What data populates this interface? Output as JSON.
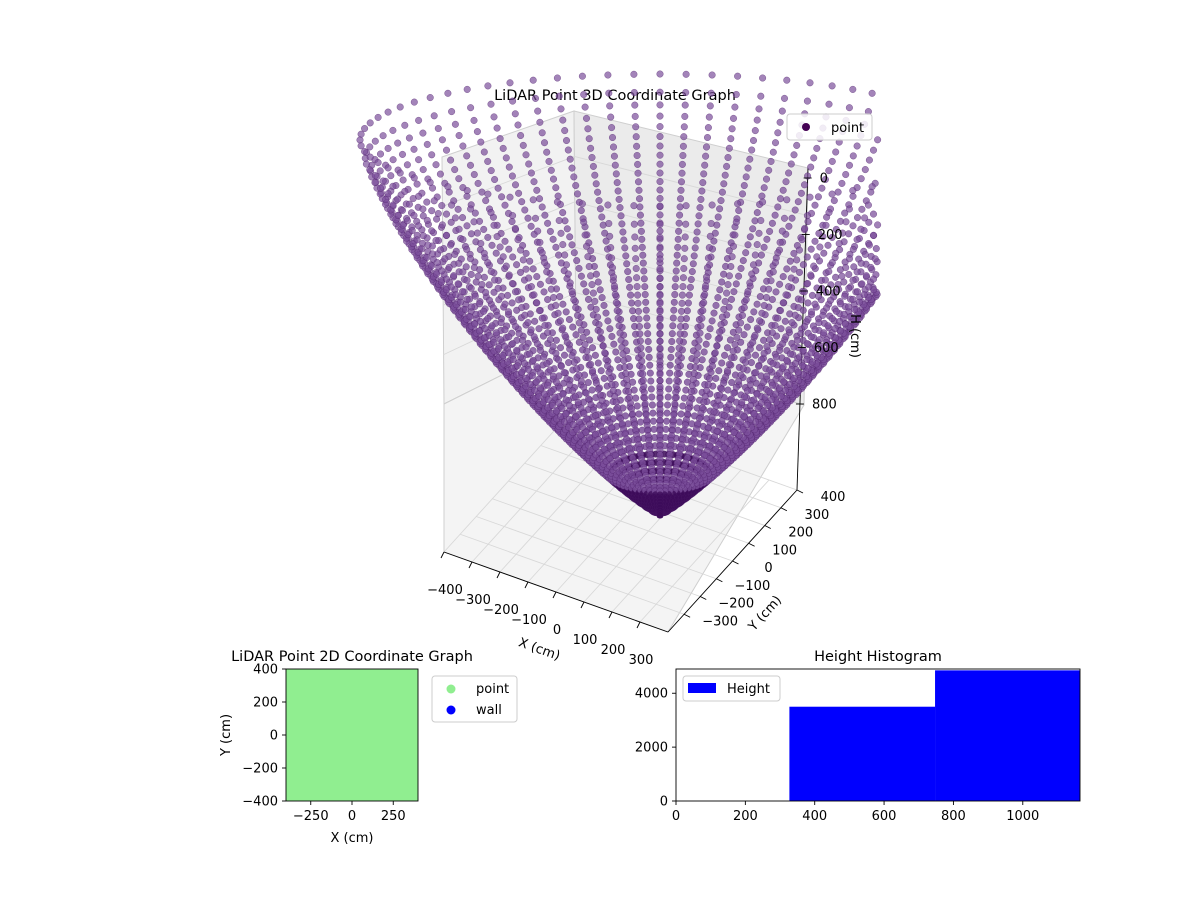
{
  "chart_data": [
    {
      "type": "scatter3d",
      "title": "LiDAR Point 3D Coordinate Graph",
      "xlabel": "X (cm)",
      "ylabel": "Y (cm)",
      "zlabel": "H (cm)",
      "xticks": [
        "−400",
        "−300",
        "−200",
        "−100",
        "0",
        "100",
        "200",
        "300"
      ],
      "yticks": [
        "−300",
        "−200",
        "−100",
        "0",
        "100",
        "200",
        "300",
        "400"
      ],
      "zticks": [
        "0",
        "200",
        "400",
        "600",
        "800"
      ],
      "xlim": [
        -400,
        400
      ],
      "ylim": [
        -400,
        400
      ],
      "zlim": [
        0,
        1000
      ],
      "grid": true,
      "legend": {
        "position": "top-right",
        "entries": [
          {
            "label": "point",
            "color": "#440154"
          }
        ]
      },
      "series": [
        {
          "name": "point",
          "color": "#440154",
          "shape": "bowl",
          "rings": 52,
          "rays": 72,
          "r_max": 700,
          "h_max": 1000
        }
      ]
    },
    {
      "type": "scatter",
      "title": "LiDAR Point 2D Coordinate Graph",
      "xlabel": "X (cm)",
      "ylabel": "Y (cm)",
      "xticks": [
        "−250",
        "0",
        "250"
      ],
      "yticks": [
        "−400",
        "−200",
        "0",
        "200",
        "400"
      ],
      "xlim": [
        -400,
        400
      ],
      "ylim": [
        -400,
        400
      ],
      "legend": {
        "position": "outside-right",
        "entries": [
          {
            "label": "point",
            "color": "#90ee90"
          },
          {
            "label": "wall",
            "color": "#0000ff"
          }
        ]
      },
      "series": [
        {
          "name": "point",
          "color": "#90ee90",
          "fill_extent": [
            -400,
            400,
            -400,
            400
          ]
        }
      ]
    },
    {
      "type": "bar",
      "title": "Height Histogram",
      "xlabel": "",
      "ylabel": "",
      "xticks": [
        "0",
        "200",
        "400",
        "600",
        "800",
        "1000"
      ],
      "yticks": [
        "0",
        "2000",
        "4000"
      ],
      "xlim": [
        0,
        1165
      ],
      "ylim": [
        0,
        4900
      ],
      "legend": {
        "position": "top-left",
        "entries": [
          {
            "label": "Height",
            "color": "#0000ff"
          }
        ]
      },
      "series": [
        {
          "name": "Height",
          "color": "#0000ff",
          "bins": [
            [
              0,
              327,
              0
            ],
            [
              327,
              747,
              3500
            ],
            [
              747,
              1165,
              4850
            ]
          ]
        }
      ]
    }
  ]
}
